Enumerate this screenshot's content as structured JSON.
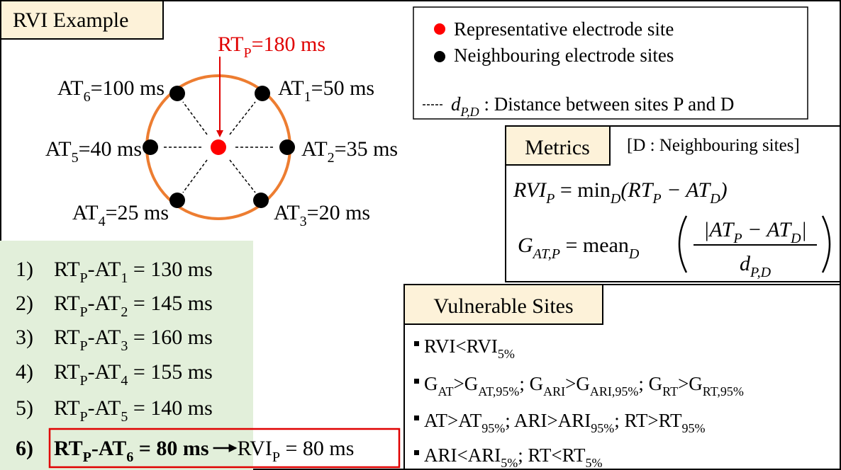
{
  "title": "RVI Example",
  "representative": {
    "label": [
      {
        "text": "RT"
      },
      {
        "sub": "P"
      },
      {
        "text": "=180 ms"
      }
    ]
  },
  "sites": [
    {
      "label": [
        {
          "text": "AT"
        },
        {
          "sub": "1"
        },
        {
          "text": "=50 ms"
        }
      ]
    },
    {
      "label": [
        {
          "text": "AT"
        },
        {
          "sub": "2"
        },
        {
          "text": "=35 ms"
        }
      ]
    },
    {
      "label": [
        {
          "text": "AT"
        },
        {
          "sub": "3"
        },
        {
          "text": "=20 ms"
        }
      ]
    },
    {
      "label": [
        {
          "text": "AT"
        },
        {
          "sub": "4"
        },
        {
          "text": "=25 ms"
        }
      ]
    },
    {
      "label": [
        {
          "text": "AT"
        },
        {
          "sub": "5"
        },
        {
          "text": "=40 ms"
        }
      ]
    },
    {
      "label": [
        {
          "text": "AT"
        },
        {
          "sub": "6"
        },
        {
          "text": "=100 ms"
        }
      ]
    }
  ],
  "legend": [
    {
      "label": [
        {
          "text": "Representative electrode site"
        }
      ]
    },
    {
      "label": [
        {
          "text": "Neighbouring electrode sites"
        }
      ]
    },
    {
      "label": [
        {
          "italic": "d"
        },
        {
          "isub": "P,D"
        },
        {
          "text": " : Distance between sites P and D"
        }
      ]
    }
  ],
  "metrics": {
    "title": "Metrics",
    "note": "[D : Neighbouring sites]",
    "rvi": [
      {
        "italic": "RVI"
      },
      {
        "isub": "P"
      },
      {
        "text": " = min"
      },
      {
        "isub": "D"
      },
      {
        "italic": "(RT"
      },
      {
        "isub": "P"
      },
      {
        "italic": " − AT"
      },
      {
        "isub": "D"
      },
      {
        "italic": ")"
      }
    ],
    "gradient": {
      "lhs": [
        {
          "italic": "G"
        },
        {
          "isub": "AT,P"
        },
        {
          "text": " = mean"
        },
        {
          "isub": "D"
        }
      ],
      "numerator": [
        {
          "italic": "|AT"
        },
        {
          "isub": "P"
        },
        {
          "italic": " − AT"
        },
        {
          "isub": "D"
        },
        {
          "italic": "|"
        }
      ],
      "denominator": [
        {
          "italic": "d"
        },
        {
          "isub": "P,D"
        }
      ]
    }
  },
  "steps": [
    {
      "n": "1)",
      "label": [
        {
          "text": "RT"
        },
        {
          "sub": "P"
        },
        {
          "text": "-AT"
        },
        {
          "sub": "1"
        },
        {
          "text": " = 130 ms"
        }
      ]
    },
    {
      "n": "2)",
      "label": [
        {
          "text": "RT"
        },
        {
          "sub": "P"
        },
        {
          "text": "-AT"
        },
        {
          "sub": "2"
        },
        {
          "text": " = 145 ms"
        }
      ]
    },
    {
      "n": "3)",
      "label": [
        {
          "text": "RT"
        },
        {
          "sub": "P"
        },
        {
          "text": "-AT"
        },
        {
          "sub": "3"
        },
        {
          "text": " = 160 ms"
        }
      ]
    },
    {
      "n": "4)",
      "label": [
        {
          "text": "RT"
        },
        {
          "sub": "P"
        },
        {
          "text": "-AT"
        },
        {
          "sub": "4"
        },
        {
          "text": " = 155 ms"
        }
      ]
    },
    {
      "n": "5)",
      "label": [
        {
          "text": "RT"
        },
        {
          "sub": "P"
        },
        {
          "text": "-AT"
        },
        {
          "sub": "5"
        },
        {
          "text": " = 140 ms"
        }
      ]
    },
    {
      "n": "6)",
      "label": [
        {
          "text": "RT"
        },
        {
          "sub": "P"
        },
        {
          "text": "-AT"
        },
        {
          "sub": "6"
        },
        {
          "text": " = 80 ms"
        }
      ],
      "result": [
        {
          "text": "RVI"
        },
        {
          "sub": "P"
        },
        {
          "text": " = 80 ms"
        }
      ]
    }
  ],
  "vulnerable": {
    "title": "Vulnerable Sites",
    "items": [
      [
        {
          "text": "RVI<RVI"
        },
        {
          "sub": "5%"
        }
      ],
      [
        {
          "text": "G"
        },
        {
          "sub": "AT"
        },
        {
          "text": ">G"
        },
        {
          "sub": "AT,95%"
        },
        {
          "text": "; G"
        },
        {
          "sub": "ARI"
        },
        {
          "text": ">G"
        },
        {
          "sub": "ARI,95%"
        },
        {
          "text": "; G"
        },
        {
          "sub": "RT"
        },
        {
          "text": ">G"
        },
        {
          "sub": "RT,95%"
        }
      ],
      [
        {
          "text": "AT>AT"
        },
        {
          "sub": "95%"
        },
        {
          "text": "; ARI>ARI"
        },
        {
          "sub": "95%"
        },
        {
          "text": "; RT>RT"
        },
        {
          "sub": "95%"
        }
      ],
      [
        {
          "text": "ARI<ARI"
        },
        {
          "sub": "5%"
        },
        {
          "text": "; RT<RT"
        },
        {
          "sub": "5%"
        }
      ]
    ]
  }
}
